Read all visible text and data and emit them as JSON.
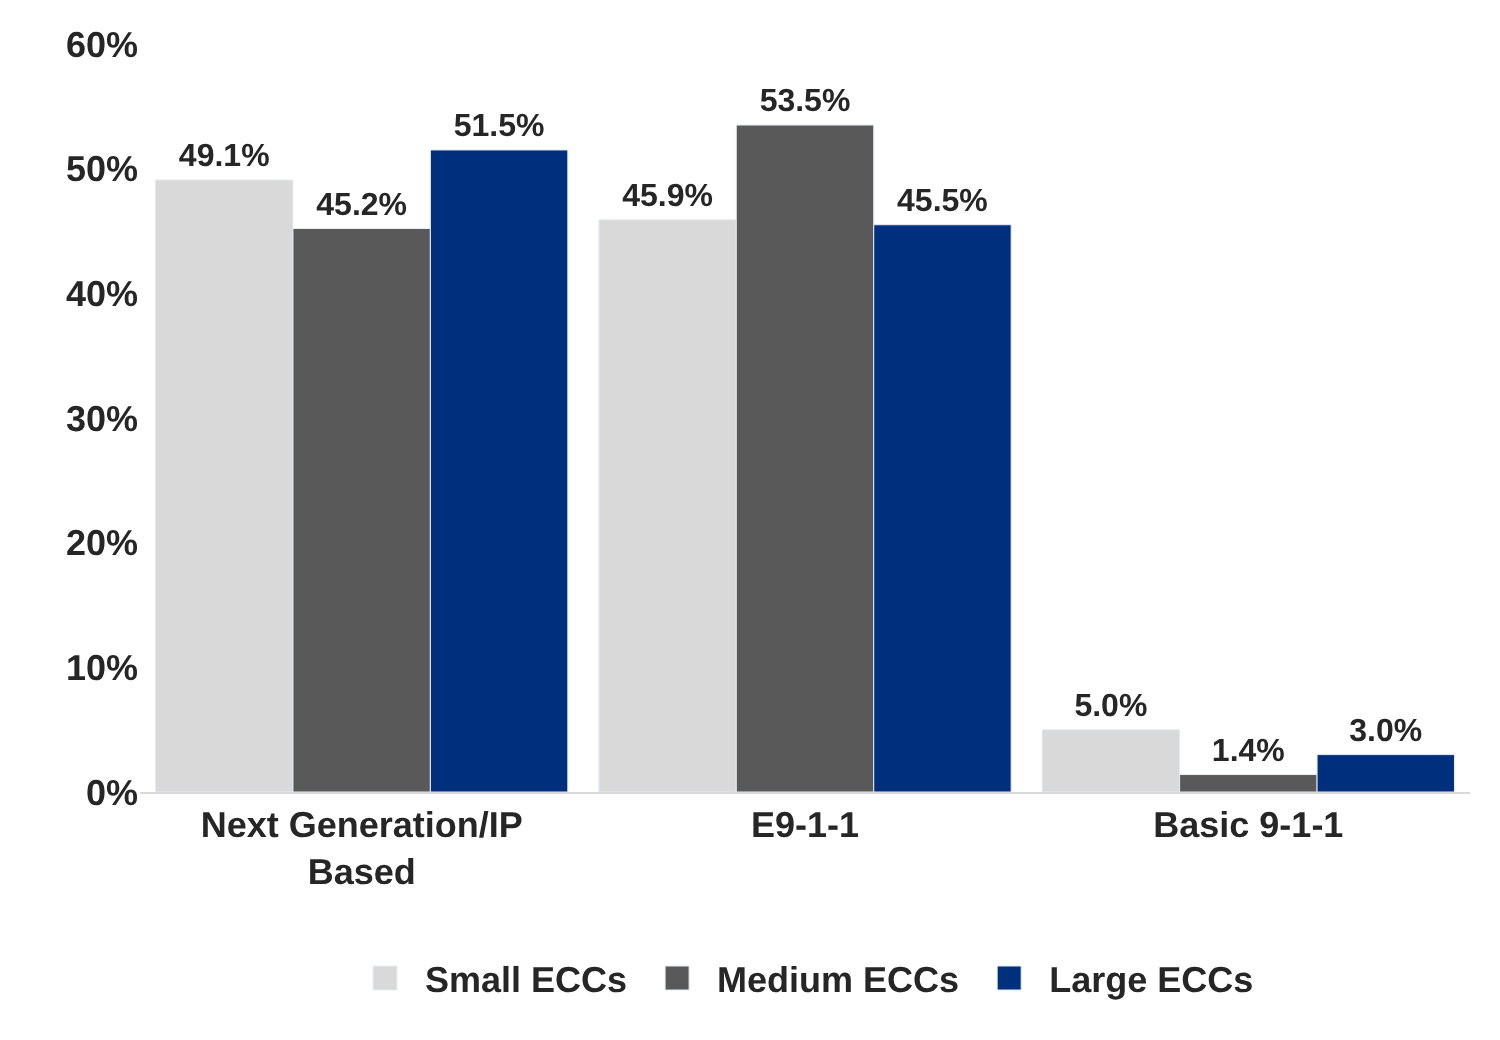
{
  "chart_data": {
    "type": "bar",
    "categories": [
      "Next Generation/IP Based",
      "E9-1-1",
      "Basic 9-1-1"
    ],
    "series": [
      {
        "name": "Small ECCs",
        "color": "#d9d9d9",
        "values": [
          49.1,
          45.9,
          5.0
        ],
        "value_labels": [
          "49.1%",
          "45.9%",
          "5.0%"
        ]
      },
      {
        "name": "Medium ECCs",
        "color": "#595959",
        "values": [
          45.2,
          53.5,
          1.4
        ],
        "value_labels": [
          "45.2%",
          "53.5%",
          "1.4%"
        ]
      },
      {
        "name": "Large ECCs",
        "color": "#002f7d",
        "values": [
          51.5,
          45.5,
          3.0
        ],
        "value_labels": [
          "51.5%",
          "45.5%",
          "3.0%"
        ]
      }
    ],
    "ylim": [
      0,
      60
    ],
    "yticks": [
      {
        "value": 0,
        "label": "0%"
      },
      {
        "value": 10,
        "label": "10%"
      },
      {
        "value": 20,
        "label": "20%"
      },
      {
        "value": 30,
        "label": "30%"
      },
      {
        "value": 40,
        "label": "40%"
      },
      {
        "value": 50,
        "label": "50%"
      },
      {
        "value": 60,
        "label": "60%"
      }
    ],
    "legend": "bottom"
  }
}
